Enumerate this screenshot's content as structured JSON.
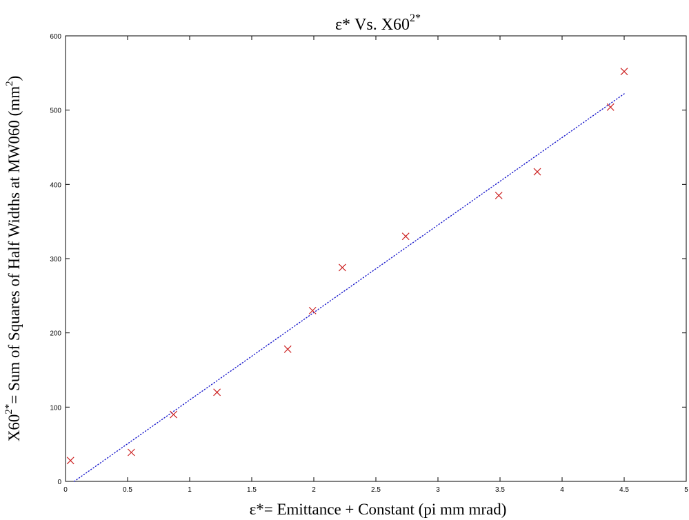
{
  "chart_data": {
    "type": "scatter",
    "title": {
      "main": "ε* Vs. X60",
      "sup": "2*"
    },
    "xlabel": "ε*= Emittance + Constant (pi mm mrad)",
    "ylabel": {
      "prefix": "X60",
      "sup": "2*",
      "text": "= Sum of Squares of Half Widths at MW060 (mm",
      "unit_sup": "2",
      "suffix": ")"
    },
    "xlim": [
      0,
      5
    ],
    "ylim": [
      0,
      600
    ],
    "x_ticks": [
      0,
      0.5,
      1,
      1.5,
      2,
      2.5,
      3,
      3.5,
      4,
      4.5,
      5
    ],
    "x_tick_labels": [
      "0",
      "0.5",
      "1",
      "1.5",
      "2",
      "2.5",
      "3",
      "3.5",
      "4",
      "4.5",
      "5"
    ],
    "y_ticks": [
      0,
      100,
      200,
      300,
      400,
      500,
      600
    ],
    "y_tick_labels": [
      "0",
      "100",
      "200",
      "300",
      "400",
      "500",
      "600"
    ],
    "grid": false,
    "series": [
      {
        "kind": "scatter",
        "marker": "x",
        "color": "#cc2222",
        "x": [
          0.04,
          0.53,
          0.87,
          1.22,
          1.79,
          1.99,
          2.23,
          2.74,
          3.49,
          3.8,
          4.39,
          4.5
        ],
        "y": [
          28,
          39,
          90,
          120,
          178,
          230,
          288,
          330,
          385,
          417,
          504,
          552
        ]
      },
      {
        "kind": "line",
        "style": "dotted",
        "color": "#1a1acc",
        "x": [
          0.07,
          4.5
        ],
        "y": [
          0,
          522
        ]
      }
    ]
  }
}
